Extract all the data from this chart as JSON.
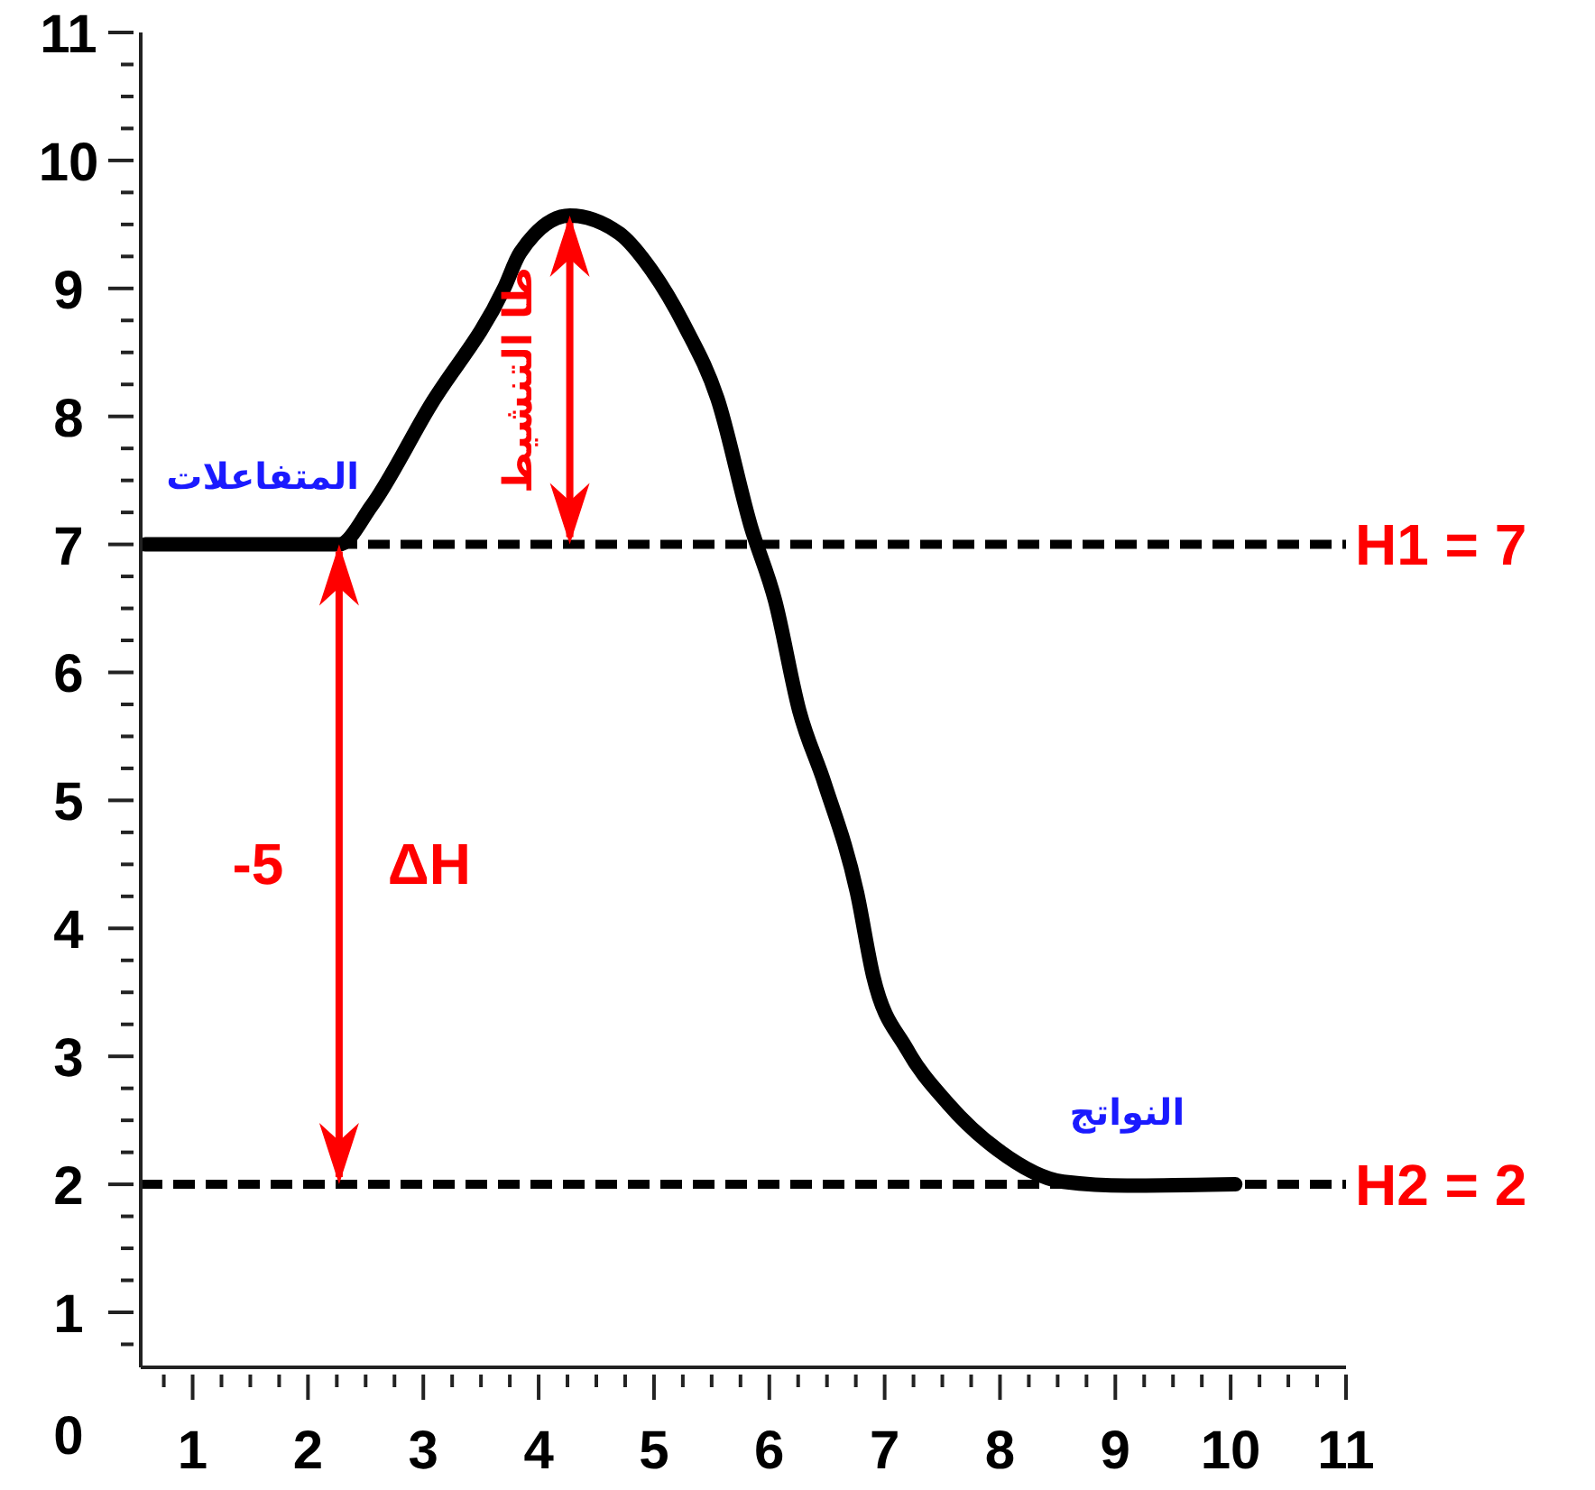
{
  "chart_data": {
    "type": "line",
    "x": [
      0.59,
      2.27,
      2.55,
      3.05,
      3.7,
      3.84,
      4.27,
      4.7,
      4.98,
      5.27,
      5.55,
      5.84,
      6.05,
      6.26,
      6.48,
      6.76,
      6.9,
      7.19,
      7.55,
      7.98,
      8.55,
      9.1,
      10.04
    ],
    "series": [
      {
        "color": "#000000",
        "values": [
          7.0,
          7.0,
          7.3,
          8.07,
          9.0,
          9.28,
          9.57,
          9.43,
          9.14,
          8.7,
          8.14,
          7.14,
          6.56,
          5.7,
          5.13,
          4.28,
          3.63,
          3.06,
          2.63,
          2.27,
          2.02,
          1.99,
          2.0
        ]
      }
    ],
    "xlim": [
      0.55,
      11
    ],
    "ylim": [
      0.57,
      11
    ],
    "xticks": [
      {
        "value": 0.75,
        "label": null
      },
      1,
      {
        "value": 1.25,
        "label": null
      },
      {
        "value": 1.5,
        "label": null
      },
      {
        "value": 1.75,
        "label": null
      },
      2,
      {
        "value": 2.25,
        "label": null
      },
      {
        "value": 2.5,
        "label": null
      },
      {
        "value": 2.75,
        "label": null
      },
      3,
      {
        "value": 3.25,
        "label": null
      },
      {
        "value": 3.5,
        "label": null
      },
      {
        "value": 3.75,
        "label": null
      },
      4,
      {
        "value": 4.25,
        "label": null
      },
      {
        "value": 4.5,
        "label": null
      },
      {
        "value": 4.75,
        "label": null
      },
      5,
      {
        "value": 5.25,
        "label": null
      },
      {
        "value": 5.5,
        "label": null
      },
      {
        "value": 5.75,
        "label": null
      },
      6,
      {
        "value": 6.25,
        "label": null
      },
      {
        "value": 6.5,
        "label": null
      },
      {
        "value": 6.75,
        "label": null
      },
      7,
      {
        "value": 7.25,
        "label": null
      },
      {
        "value": 7.5,
        "label": null
      },
      {
        "value": 7.75,
        "label": null
      },
      8,
      {
        "value": 8.25,
        "label": null
      },
      {
        "value": 8.5,
        "label": null
      },
      {
        "value": 8.75,
        "label": null
      },
      9,
      {
        "value": 9.25,
        "label": null
      },
      {
        "value": 9.5,
        "label": null
      },
      {
        "value": 9.75,
        "label": null
      },
      10,
      {
        "value": 10.25,
        "label": null
      },
      {
        "value": 10.5,
        "label": null
      },
      {
        "value": 10.75,
        "label": null
      },
      11
    ],
    "yticks": [
      {
        "value": 0.75,
        "label": null
      },
      1,
      {
        "value": 1.25,
        "label": null
      },
      {
        "value": 1.5,
        "label": null
      },
      {
        "value": 1.75,
        "label": null
      },
      2,
      {
        "value": 2.25,
        "label": null
      },
      {
        "value": 2.5,
        "label": null
      },
      {
        "value": 2.75,
        "label": null
      },
      3,
      {
        "value": 3.25,
        "label": null
      },
      {
        "value": 3.5,
        "label": null
      },
      {
        "value": 3.75,
        "label": null
      },
      4,
      {
        "value": 4.25,
        "label": null
      },
      {
        "value": 4.5,
        "label": null
      },
      {
        "value": 4.75,
        "label": null
      },
      5,
      {
        "value": 5.25,
        "label": null
      },
      {
        "value": 5.5,
        "label": null
      },
      {
        "value": 5.75,
        "label": null
      },
      6,
      {
        "value": 6.25,
        "label": null
      },
      {
        "value": 6.5,
        "label": null
      },
      {
        "value": 6.75,
        "label": null
      },
      7,
      {
        "value": 7.25,
        "label": null
      },
      {
        "value": 7.5,
        "label": null
      },
      {
        "value": 7.75,
        "label": null
      },
      8,
      {
        "value": 8.25,
        "label": null
      },
      {
        "value": 8.5,
        "label": null
      },
      {
        "value": 8.75,
        "label": null
      },
      9,
      {
        "value": 9.25,
        "label": null
      },
      {
        "value": 9.5,
        "label": null
      },
      {
        "value": 9.75,
        "label": null
      },
      10,
      {
        "value": 10.25,
        "label": null
      },
      {
        "value": 10.5,
        "label": null
      },
      {
        "value": 10.75,
        "label": null
      },
      11
    ],
    "ref_lines": [
      {
        "axis": "y",
        "value": 7,
        "label": "H1 = 7",
        "color": "#000000",
        "line_style": "dashed"
      },
      {
        "axis": "y",
        "value": 2,
        "label": "H2 = 2",
        "color": "#000000",
        "line_style": "dashed"
      }
    ],
    "annotations": [
      "-5",
      "ΔH",
      "طا التنشيط",
      "المتفاعلات",
      "النواتج",
      "0"
    ],
    "grid": false,
    "legend": false,
    "marker": "none",
    "line_style": "solid"
  }
}
